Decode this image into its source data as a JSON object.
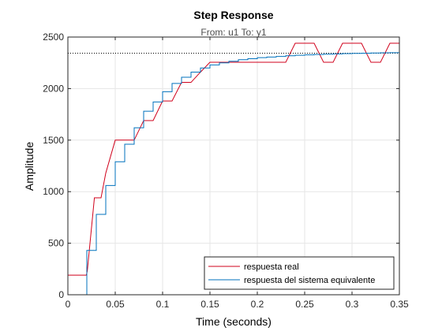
{
  "chart_data": {
    "type": "line",
    "title": "Step Response",
    "subtitle": "From: u1  To: y1",
    "xlabel": "Time (seconds)",
    "ylabel": "Amplitude",
    "xlim": [
      0,
      0.35
    ],
    "ylim": [
      0,
      2500
    ],
    "xticks": [
      0,
      0.05,
      0.1,
      0.15,
      0.2,
      0.25,
      0.3,
      0.35
    ],
    "xtick_labels": [
      "0",
      "0.05",
      "0.1",
      "0.15",
      "0.2",
      "0.25",
      "0.3",
      "0.35"
    ],
    "yticks": [
      0,
      500,
      1000,
      1500,
      2000,
      2500
    ],
    "ytick_labels": [
      "0",
      "500",
      "1000",
      "1500",
      "2000",
      "2500"
    ],
    "grid": true,
    "legend_location": "bottom-right",
    "reference_line": {
      "style": "dotted",
      "y": 2343,
      "color": "#000000"
    },
    "series": [
      {
        "name": "respuesta real",
        "color": "#d0011b",
        "kind": "line",
        "x": [
          0,
          0.0195,
          0.0205,
          0.028,
          0.035,
          0.04,
          0.05,
          0.06,
          0.07,
          0.08,
          0.09,
          0.1,
          0.11,
          0.12,
          0.13,
          0.14,
          0.15,
          0.16,
          0.17,
          0.23,
          0.24,
          0.26,
          0.27,
          0.28,
          0.29,
          0.3,
          0.31,
          0.32,
          0.33,
          0.34,
          0.35
        ],
        "y": [
          190,
          190,
          230,
          940,
          940,
          1180,
          1500,
          1500,
          1500,
          1690,
          1690,
          1880,
          1880,
          2060,
          2060,
          2160,
          2255,
          2255,
          2255,
          2255,
          2440,
          2440,
          2255,
          2255,
          2440,
          2440,
          2440,
          2255,
          2255,
          2440,
          2440
        ]
      },
      {
        "name": "respuesta del sistema equivalente",
        "color": "#0072bd",
        "kind": "stairs",
        "x": [
          0,
          0.02,
          0.025,
          0.03,
          0.04,
          0.05,
          0.06,
          0.07,
          0.08,
          0.09,
          0.1,
          0.11,
          0.12,
          0.13,
          0.14,
          0.15,
          0.16,
          0.17,
          0.18,
          0.19,
          0.2,
          0.21,
          0.22,
          0.23,
          0.24,
          0.25,
          0.26,
          0.27,
          0.28,
          0.29,
          0.3,
          0.31,
          0.32,
          0.33,
          0.34
        ],
        "y": [
          0,
          430,
          430,
          780,
          1060,
          1290,
          1460,
          1620,
          1780,
          1870,
          1970,
          2050,
          2110,
          2160,
          2200,
          2230,
          2250,
          2265,
          2280,
          2290,
          2300,
          2306,
          2312,
          2318,
          2323,
          2327,
          2331,
          2334,
          2337,
          2339,
          2341,
          2343,
          2345,
          2347,
          2348
        ]
      }
    ]
  }
}
